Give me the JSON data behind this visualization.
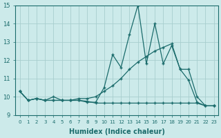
{
  "xlabel": "Humidex (Indice chaleur)",
  "background_color": "#cceaea",
  "grid_color": "#a8cece",
  "line_color": "#1a6b6b",
  "xlim": [
    -0.5,
    23.5
  ],
  "ylim": [
    9,
    15
  ],
  "yticks": [
    9,
    10,
    11,
    12,
    13,
    14,
    15
  ],
  "xticks": [
    0,
    1,
    2,
    3,
    4,
    5,
    6,
    7,
    8,
    9,
    10,
    11,
    12,
    13,
    14,
    15,
    16,
    17,
    18,
    19,
    20,
    21,
    22,
    23
  ],
  "series": [
    {
      "x": [
        0,
        1,
        2,
        3,
        4,
        5,
        6,
        7,
        8,
        9,
        10,
        11,
        12,
        13,
        14,
        15,
        16,
        17,
        18,
        19,
        20,
        21,
        22,
        23
      ],
      "y": [
        10.3,
        9.8,
        9.9,
        9.8,
        10.0,
        9.8,
        9.8,
        9.8,
        9.7,
        9.7,
        10.5,
        12.3,
        11.6,
        13.4,
        15.0,
        11.8,
        14.0,
        11.8,
        12.8,
        11.5,
        10.9,
        9.7,
        9.5,
        9.5
      ]
    },
    {
      "x": [
        0,
        1,
        2,
        3,
        4,
        5,
        6,
        7,
        8,
        9,
        10,
        11,
        12,
        13,
        14,
        15,
        16,
        17,
        18,
        19,
        20,
        21,
        22,
        23
      ],
      "y": [
        10.3,
        9.8,
        9.9,
        9.8,
        9.8,
        9.8,
        9.8,
        9.9,
        9.9,
        10.0,
        10.3,
        10.6,
        11.0,
        11.5,
        11.9,
        12.2,
        12.5,
        12.7,
        12.9,
        11.5,
        11.5,
        10.0,
        9.5,
        9.5
      ]
    },
    {
      "x": [
        0,
        1,
        2,
        3,
        4,
        5,
        6,
        7,
        8,
        9,
        10,
        11,
        12,
        13,
        14,
        15,
        16,
        17,
        18,
        19,
        20,
        21,
        22,
        23
      ],
      "y": [
        10.3,
        9.8,
        9.9,
        9.8,
        9.8,
        9.8,
        9.8,
        9.8,
        9.75,
        9.65,
        9.65,
        9.65,
        9.65,
        9.65,
        9.65,
        9.65,
        9.65,
        9.65,
        9.65,
        9.65,
        9.65,
        9.65,
        9.5,
        9.5
      ]
    }
  ]
}
